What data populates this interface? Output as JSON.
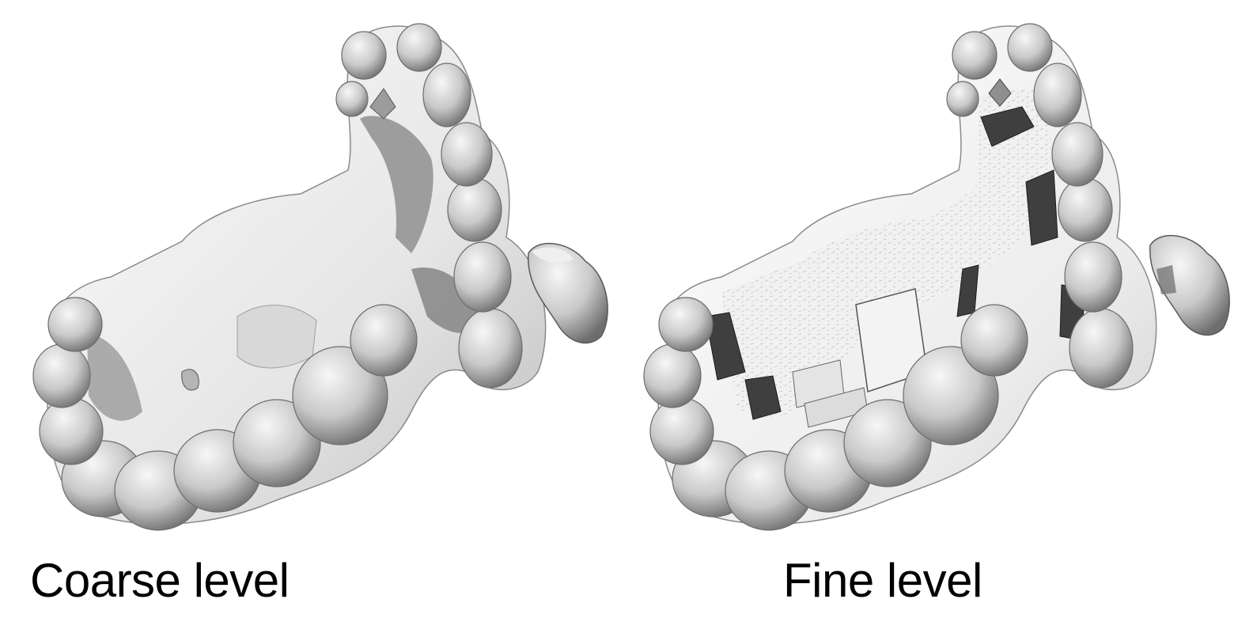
{
  "panels": [
    {
      "caption": "Coarse level",
      "surface": "smooth-blobby-mesh"
    },
    {
      "caption": "Fine level",
      "surface": "detailed-mesh"
    }
  ],
  "colors": {
    "background": "#ffffff",
    "mesh_light": "#f4f4f4",
    "mesh_mid": "#bdbdbd",
    "mesh_dark": "#5a5a5a",
    "mesh_edge": "#2e2e2e"
  }
}
